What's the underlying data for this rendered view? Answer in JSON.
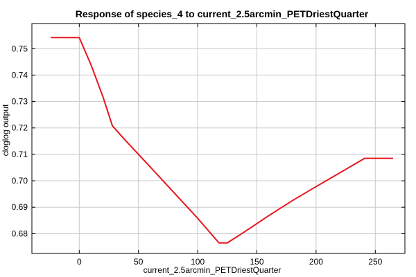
{
  "chart_data": {
    "type": "line",
    "title": "Response of species_4 to current_2.5arcmin_PETDriestQuarter",
    "xlabel": "current_2.5arcmin_PETDriestQuarter",
    "ylabel": "cloglog output",
    "xlim": [
      -40,
      275
    ],
    "ylim": [
      0.6725,
      0.7595
    ],
    "xticks": [
      0,
      50,
      100,
      150,
      200,
      250
    ],
    "yticks": [
      0.68,
      0.69,
      0.7,
      0.71,
      0.72,
      0.73,
      0.74,
      0.75
    ],
    "ytick_labels": [
      "0.68",
      "0.69",
      "0.70",
      "0.71",
      "0.72",
      "0.73",
      "0.74",
      "0.75"
    ],
    "grid": true,
    "series": [
      {
        "color": "#e8141c",
        "points": [
          [
            -24,
            0.7542
          ],
          [
            0,
            0.7542
          ],
          [
            10,
            0.7438
          ],
          [
            20,
            0.7318
          ],
          [
            28,
            0.7208
          ],
          [
            40,
            0.7148
          ],
          [
            60,
            0.7052
          ],
          [
            80,
            0.6955
          ],
          [
            100,
            0.6858
          ],
          [
            118,
            0.6765
          ],
          [
            125,
            0.6765
          ],
          [
            140,
            0.6808
          ],
          [
            160,
            0.6868
          ],
          [
            180,
            0.6925
          ],
          [
            200,
            0.6978
          ],
          [
            220,
            0.703
          ],
          [
            241,
            0.7085
          ],
          [
            265,
            0.7085
          ]
        ]
      }
    ]
  }
}
